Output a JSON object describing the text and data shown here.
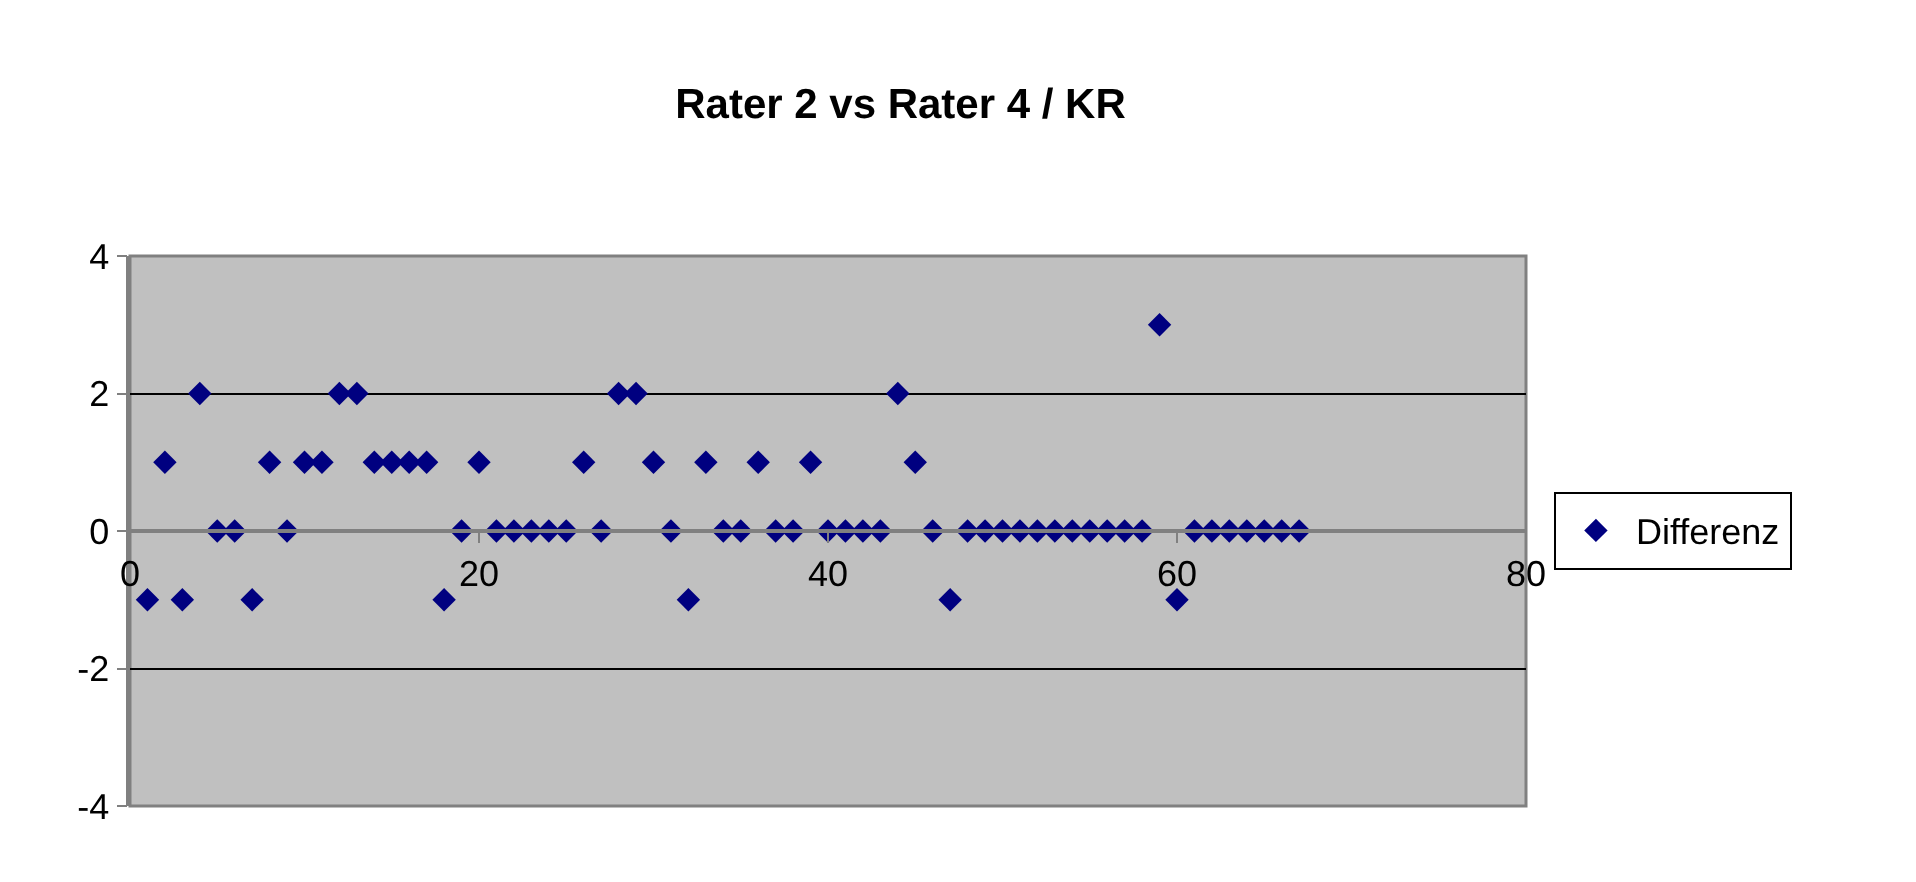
{
  "chart_data": {
    "type": "scatter",
    "title": "Rater 2 vs Rater 4 / KR",
    "x": [
      1,
      2,
      3,
      4,
      5,
      6,
      7,
      8,
      9,
      10,
      11,
      12,
      13,
      14,
      15,
      16,
      17,
      18,
      19,
      20,
      21,
      22,
      23,
      24,
      25,
      26,
      27,
      28,
      29,
      30,
      31,
      32,
      33,
      34,
      35,
      36,
      37,
      38,
      39,
      40,
      41,
      42,
      43,
      44,
      45,
      46,
      47,
      48,
      49,
      50,
      51,
      52,
      53,
      54,
      55,
      56,
      57,
      58,
      59,
      60,
      61,
      62,
      63,
      64,
      65,
      66,
      67
    ],
    "series": [
      {
        "name": "Differenz",
        "color": "#000080",
        "values": [
          -1,
          1,
          -1,
          2,
          0,
          0,
          -1,
          1,
          0,
          1,
          1,
          2,
          2,
          1,
          1,
          1,
          1,
          -1,
          0,
          1,
          0,
          0,
          0,
          0,
          0,
          1,
          0,
          2,
          2,
          1,
          0,
          -1,
          1,
          0,
          0,
          1,
          0,
          0,
          1,
          0,
          0,
          0,
          0,
          2,
          1,
          0,
          -1,
          0,
          0,
          0,
          0,
          0,
          0,
          0,
          0,
          0,
          0,
          0,
          3,
          -1,
          0,
          0,
          0,
          0,
          0,
          0,
          0
        ]
      }
    ],
    "xlim": [
      0,
      80
    ],
    "xticks": [
      0,
      20,
      40,
      60,
      80
    ],
    "ylim": [
      -4,
      4
    ],
    "yticks": [
      -4,
      -2,
      0,
      2,
      4
    ],
    "grid": "y",
    "legend": "right",
    "marker": "diamond"
  }
}
